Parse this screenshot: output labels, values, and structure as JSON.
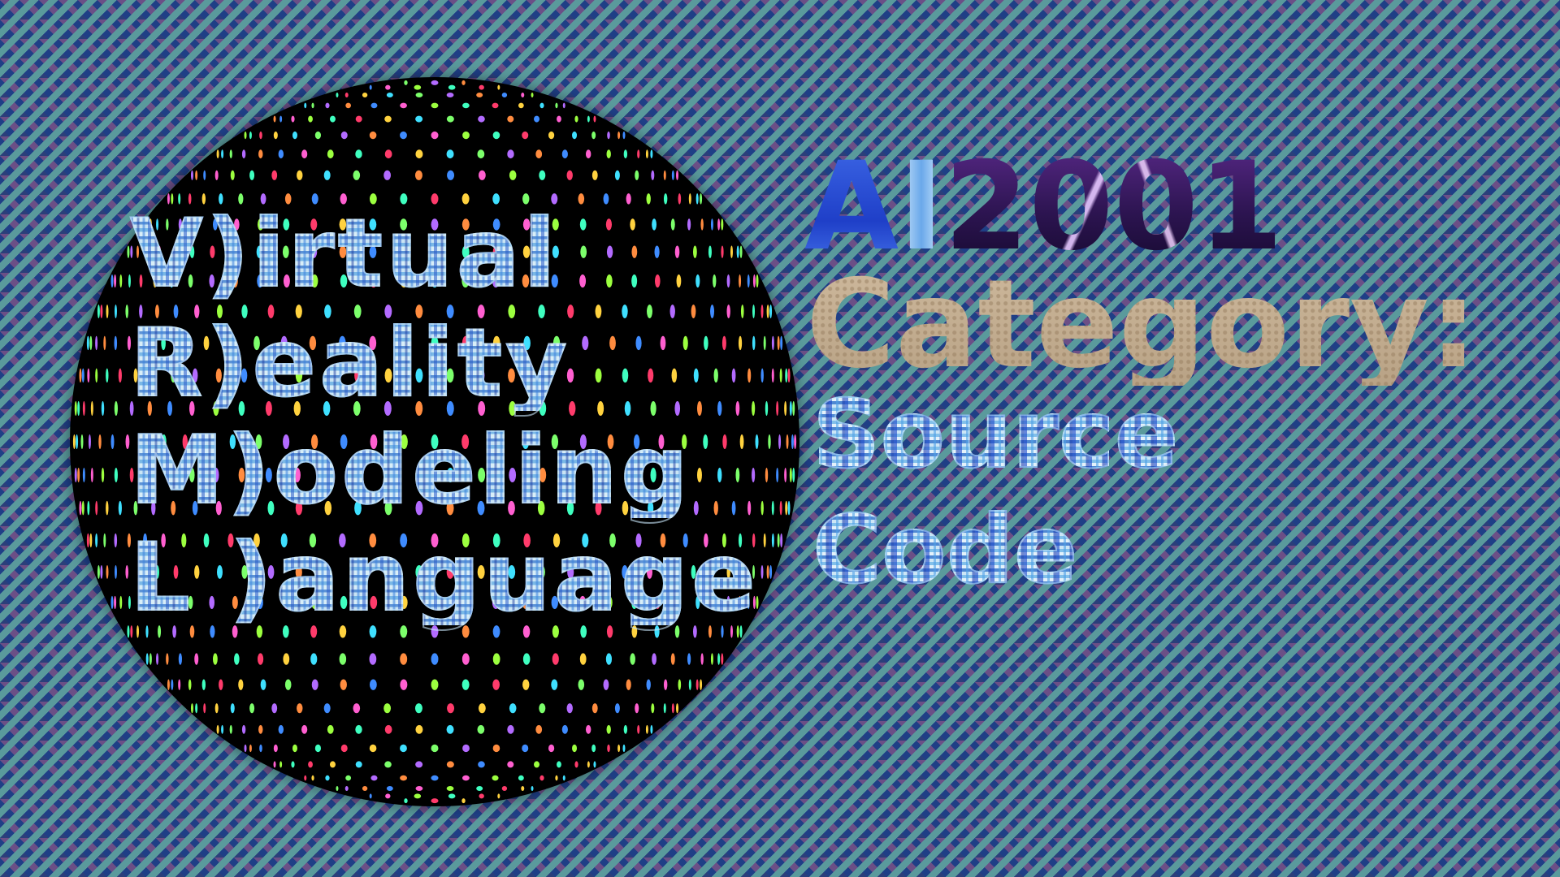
{
  "acronym": {
    "line1": "V)irtual",
    "line2": "R)eality",
    "line3": "M)odeling",
    "line4": "L )anguage"
  },
  "title": {
    "ai": "A",
    "ai_i": "I",
    "year": "2001",
    "category": "Category:",
    "category_value_line1": "Source",
    "category_value_line2": "Code"
  },
  "colors": {
    "background_teal": "#5a9a9c",
    "background_navy": "#1f3f86",
    "background_purple": "#6b4f86",
    "sphere": "#000000",
    "category_text": "#c2ad92",
    "ai_blue": "#2f55d8"
  }
}
